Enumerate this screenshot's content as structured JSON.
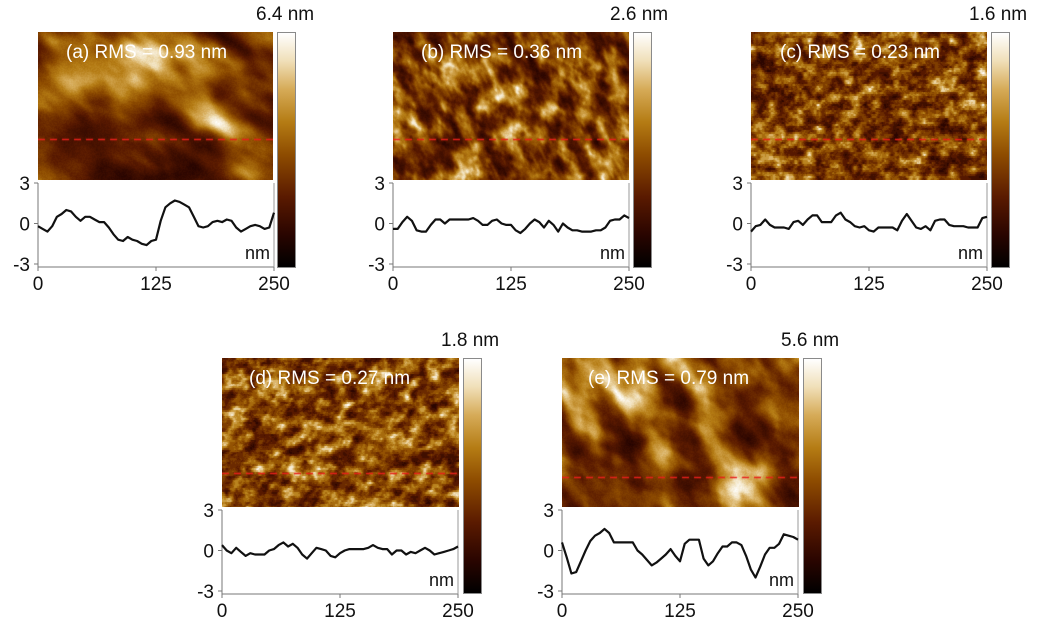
{
  "figure": {
    "description": "AFM height images with line profiles along dashed red line"
  },
  "chart_data": [
    {
      "type": "line",
      "panel": "a",
      "title": "(a) RMS = 0.93 nm",
      "rms_nm": 0.93,
      "colorbar_max_label": "6.4 nm",
      "colorbar_max_nm": 6.4,
      "xlabel": "nm",
      "x_ticks": [
        "0",
        "125",
        "250"
      ],
      "y_ticks": [
        "3",
        "0",
        "-3"
      ],
      "xlim": [
        0,
        250
      ],
      "ylim": [
        -3,
        3
      ],
      "x": [
        0,
        5,
        10,
        15,
        20,
        25,
        30,
        35,
        40,
        45,
        50,
        55,
        60,
        65,
        70,
        75,
        80,
        85,
        90,
        95,
        100,
        105,
        110,
        115,
        120,
        125,
        130,
        135,
        140,
        145,
        150,
        155,
        160,
        165,
        170,
        175,
        180,
        185,
        190,
        195,
        200,
        205,
        210,
        215,
        220,
        225,
        230,
        235,
        240,
        245,
        250
      ],
      "values": [
        -0.2,
        -0.4,
        -0.6,
        -0.2,
        0.5,
        0.7,
        1.0,
        0.9,
        0.5,
        0.2,
        0.5,
        0.5,
        0.3,
        0.1,
        0.1,
        -0.3,
        -0.8,
        -1.2,
        -1.3,
        -1.0,
        -1.2,
        -1.3,
        -1.5,
        -1.6,
        -1.3,
        -1.2,
        0.2,
        1.2,
        1.5,
        1.7,
        1.6,
        1.4,
        1.2,
        0.5,
        -0.2,
        -0.3,
        -0.2,
        0.1,
        0.2,
        0.1,
        0.3,
        0.2,
        -0.3,
        -0.6,
        -0.4,
        -0.2,
        -0.1,
        -0.2,
        -0.4,
        -0.3,
        0.8
      ],
      "profile_fraction_from_top": 0.72,
      "texture": {
        "seed": 11,
        "scale": 26,
        "stretch": 1.9,
        "angle": -0.6,
        "octaves": 3,
        "roughness": 0.35
      }
    },
    {
      "type": "line",
      "panel": "b",
      "title": "(b) RMS = 0.36 nm",
      "rms_nm": 0.36,
      "colorbar_max_label": "2.6 nm",
      "colorbar_max_nm": 2.6,
      "xlabel": "nm",
      "x_ticks": [
        "0",
        "125",
        "250"
      ],
      "y_ticks": [
        "3",
        "0",
        "-3"
      ],
      "xlim": [
        0,
        250
      ],
      "ylim": [
        -3,
        3
      ],
      "x": [
        0,
        5,
        10,
        15,
        20,
        25,
        30,
        35,
        40,
        45,
        50,
        55,
        60,
        65,
        70,
        75,
        80,
        85,
        90,
        95,
        100,
        105,
        110,
        115,
        120,
        125,
        130,
        135,
        140,
        145,
        150,
        155,
        160,
        165,
        170,
        175,
        180,
        185,
        190,
        195,
        200,
        205,
        210,
        215,
        220,
        225,
        230,
        235,
        240,
        245,
        250
      ],
      "values": [
        -0.4,
        -0.4,
        0.1,
        0.5,
        0.2,
        -0.5,
        -0.6,
        -0.6,
        -0.1,
        0.3,
        0.3,
        0.0,
        0.3,
        0.3,
        0.3,
        0.3,
        0.3,
        0.4,
        0.2,
        -0.1,
        -0.1,
        0.2,
        0.3,
        0.0,
        -0.1,
        -0.1,
        -0.5,
        -0.7,
        -0.4,
        0.0,
        0.3,
        0.1,
        -0.3,
        0.2,
        -0.1,
        -0.6,
        0.0,
        -0.3,
        -0.5,
        -0.5,
        -0.6,
        -0.6,
        -0.6,
        -0.5,
        -0.5,
        -0.3,
        0.2,
        0.3,
        0.3,
        0.6,
        0.4
      ],
      "profile_fraction_from_top": 0.72,
      "texture": {
        "seed": 23,
        "scale": 11,
        "stretch": 1.6,
        "angle": -1.1,
        "octaves": 3,
        "roughness": 0.5
      }
    },
    {
      "type": "line",
      "panel": "c",
      "title": "(c) RMS = 0.23 nm",
      "rms_nm": 0.23,
      "colorbar_max_label": "1.6 nm",
      "colorbar_max_nm": 1.6,
      "xlabel": "nm",
      "x_ticks": [
        "0",
        "125",
        "250"
      ],
      "y_ticks": [
        "3",
        "0",
        "-3"
      ],
      "xlim": [
        0,
        250
      ],
      "ylim": [
        -3,
        3
      ],
      "x": [
        0,
        5,
        10,
        15,
        20,
        25,
        30,
        35,
        40,
        45,
        50,
        55,
        60,
        65,
        70,
        75,
        80,
        85,
        90,
        95,
        100,
        105,
        110,
        115,
        120,
        125,
        130,
        135,
        140,
        145,
        150,
        155,
        160,
        165,
        170,
        175,
        180,
        185,
        190,
        195,
        200,
        205,
        210,
        215,
        220,
        225,
        230,
        235,
        240,
        245,
        250
      ],
      "values": [
        -0.6,
        -0.2,
        -0.1,
        0.3,
        -0.1,
        -0.3,
        -0.3,
        -0.3,
        -0.4,
        0.1,
        0.2,
        -0.1,
        0.3,
        0.6,
        0.6,
        0.1,
        0.1,
        0.1,
        0.6,
        0.8,
        0.3,
        0.1,
        -0.2,
        -0.3,
        -0.2,
        -0.5,
        -0.6,
        -0.3,
        -0.3,
        -0.3,
        -0.3,
        -0.5,
        0.2,
        0.7,
        0.2,
        -0.3,
        -0.4,
        -0.2,
        -0.5,
        0.2,
        0.3,
        0.3,
        -0.1,
        -0.2,
        -0.2,
        -0.2,
        -0.3,
        -0.3,
        -0.3,
        0.4,
        0.5
      ],
      "profile_fraction_from_top": 0.72,
      "texture": {
        "seed": 37,
        "scale": 8,
        "stretch": 1.2,
        "angle": 0.0,
        "octaves": 3,
        "roughness": 0.6,
        "terraced": true
      }
    },
    {
      "type": "line",
      "panel": "d",
      "title": "(d) RMS = 0.27 nm",
      "rms_nm": 0.27,
      "colorbar_max_label": "1.8 nm",
      "colorbar_max_nm": 1.8,
      "xlabel": "nm",
      "x_ticks": [
        "0",
        "125",
        "250"
      ],
      "y_ticks": [
        "3",
        "0",
        "-3"
      ],
      "xlim": [
        0,
        250
      ],
      "ylim": [
        -3,
        3
      ],
      "x": [
        0,
        5,
        10,
        15,
        20,
        25,
        30,
        35,
        40,
        45,
        50,
        55,
        60,
        65,
        70,
        75,
        80,
        85,
        90,
        95,
        100,
        105,
        110,
        115,
        120,
        125,
        130,
        135,
        140,
        145,
        150,
        155,
        160,
        165,
        170,
        175,
        180,
        185,
        190,
        195,
        200,
        205,
        210,
        215,
        220,
        225,
        230,
        235,
        240,
        245,
        250
      ],
      "values": [
        0.4,
        0.0,
        -0.2,
        0.2,
        -0.1,
        -0.4,
        -0.2,
        -0.3,
        -0.3,
        -0.3,
        0.0,
        0.1,
        0.4,
        0.6,
        0.3,
        0.5,
        0.2,
        -0.3,
        -0.6,
        -0.2,
        0.2,
        0.1,
        0.0,
        -0.4,
        -0.5,
        -0.2,
        0.0,
        0.1,
        0.1,
        0.1,
        0.1,
        0.2,
        0.4,
        0.2,
        0.1,
        0.1,
        -0.3,
        0.0,
        0.0,
        -0.3,
        -0.1,
        -0.2,
        0.0,
        0.2,
        0.0,
        -0.3,
        -0.2,
        -0.1,
        0.0,
        0.1,
        0.3
      ],
      "profile_fraction_from_top": 0.77,
      "texture": {
        "seed": 51,
        "scale": 9,
        "stretch": 1.3,
        "angle": 0.3,
        "octaves": 3,
        "roughness": 0.55,
        "terraced": true
      }
    },
    {
      "type": "line",
      "panel": "e",
      "title": "(e) RMS = 0.79 nm",
      "rms_nm": 0.79,
      "colorbar_max_label": "5.6 nm",
      "colorbar_max_nm": 5.6,
      "xlabel": "nm",
      "x_ticks": [
        "0",
        "125",
        "250"
      ],
      "y_ticks": [
        "3",
        "0",
        "-3"
      ],
      "xlim": [
        0,
        250
      ],
      "ylim": [
        -3,
        3
      ],
      "x": [
        0,
        5,
        10,
        15,
        20,
        25,
        30,
        35,
        40,
        45,
        50,
        55,
        60,
        65,
        70,
        75,
        80,
        85,
        90,
        95,
        100,
        105,
        110,
        115,
        120,
        125,
        130,
        135,
        140,
        145,
        150,
        155,
        160,
        165,
        170,
        175,
        180,
        185,
        190,
        195,
        200,
        205,
        210,
        215,
        220,
        225,
        230,
        235,
        240,
        245,
        250
      ],
      "values": [
        0.6,
        -0.5,
        -1.7,
        -1.6,
        -0.8,
        0.0,
        0.7,
        1.1,
        1.3,
        1.6,
        1.3,
        0.6,
        0.6,
        0.6,
        0.6,
        0.6,
        0.0,
        -0.3,
        -0.7,
        -1.1,
        -0.9,
        -0.6,
        -0.3,
        0.1,
        -0.4,
        -0.8,
        0.5,
        0.8,
        0.8,
        0.8,
        -0.6,
        -1.1,
        -0.8,
        -0.2,
        0.3,
        0.3,
        0.6,
        0.6,
        0.4,
        -0.4,
        -1.4,
        -2.0,
        -1.2,
        -0.3,
        0.2,
        0.2,
        0.5,
        1.2,
        1.1,
        1.0,
        0.8
      ],
      "profile_fraction_from_top": 0.8,
      "texture": {
        "seed": 67,
        "scale": 22,
        "stretch": 1.6,
        "angle": -0.9,
        "octaves": 3,
        "roughness": 0.38
      }
    }
  ]
}
